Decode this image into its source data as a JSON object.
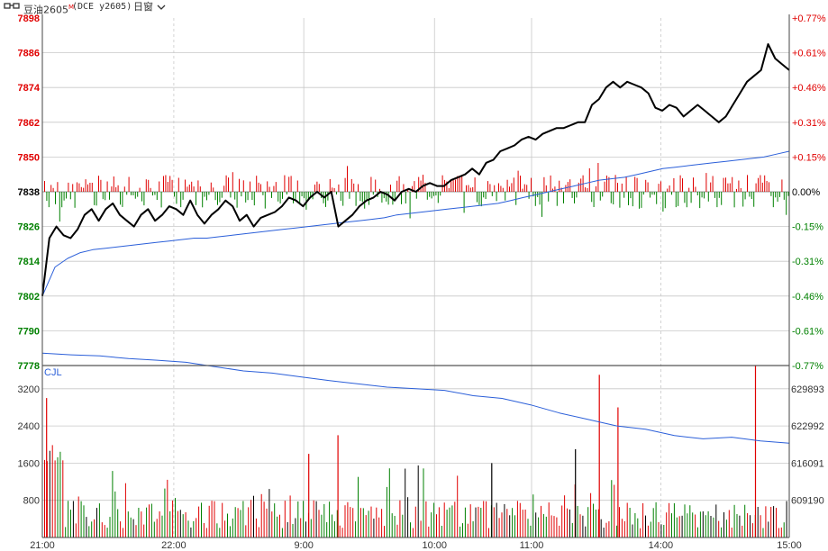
{
  "header": {
    "symbol_name": "豆油2605",
    "symbol_marker": "M",
    "exchange_code": "(DCE y2605)",
    "period": "日窗",
    "period_icon": "chevron-down-icon",
    "toolbar_icon": "glasses-icon"
  },
  "colors": {
    "up": "#e00000",
    "down": "#008000",
    "price_line": "#000000",
    "avg_line": "#2b5fd9",
    "grid": "#c8c8c8",
    "flat": "#000000"
  },
  "chart_data": [
    {
      "type": "line",
      "panel": "price",
      "x_labels": [
        "21:00",
        "22:00",
        "9:00",
        "10:00",
        "11:00",
        "14:00",
        "15:00"
      ],
      "y_ticks": [
        7898,
        7886,
        7874,
        7862,
        7850,
        7838,
        7826,
        7814,
        7802,
        7790,
        7778
      ],
      "y_ticks_right": [
        "+0.77%",
        "+0.61%",
        "+0.46%",
        "+0.31%",
        "+0.15%",
        "0.00%",
        "-0.15%",
        "-0.31%",
        "-0.46%",
        "-0.61%",
        "-0.77%"
      ],
      "ylim": [
        7778,
        7898
      ],
      "reference_price": 7838,
      "series": [
        {
          "role": "price",
          "values": [
            7802,
            7822,
            7826,
            7823,
            7822,
            7825,
            7830,
            7832,
            7828,
            7832,
            7834,
            7830,
            7828,
            7826,
            7830,
            7832,
            7828,
            7830,
            7833,
            7832,
            7830,
            7835,
            7830,
            7827,
            7830,
            7832,
            7835,
            7833,
            7828,
            7830,
            7826,
            7829,
            7830,
            7831,
            7833,
            7836,
            7835,
            7833,
            7836,
            7838,
            7836,
            7838,
            7826,
            7828,
            7830,
            7833,
            7835,
            7836,
            7838,
            7837,
            7835,
            7838,
            7839,
            7838,
            7840,
            7841,
            7840,
            7840,
            7842,
            7843,
            7844,
            7846,
            7844,
            7848,
            7849,
            7852,
            7853,
            7854,
            7856,
            7857,
            7856,
            7858,
            7859,
            7860,
            7860,
            7861,
            7862,
            7862,
            7868,
            7870,
            7874,
            7876,
            7874,
            7876,
            7875,
            7874,
            7872,
            7867,
            7866,
            7868,
            7867,
            7864,
            7866,
            7868,
            7866,
            7864,
            7862,
            7864,
            7868,
            7872,
            7876,
            7878,
            7880,
            7889,
            7884,
            7882,
            7880
          ]
        },
        {
          "role": "average",
          "values": [
            7802,
            7812,
            7815,
            7817,
            7818,
            7818.5,
            7819,
            7819.5,
            7820,
            7820.5,
            7821,
            7821.5,
            7822,
            7822,
            7822.5,
            7823,
            7823.5,
            7824,
            7824.5,
            7825,
            7825.5,
            7826,
            7826.5,
            7827,
            7827.5,
            7828,
            7828.5,
            7829,
            7830,
            7830.5,
            7831,
            7831.5,
            7832,
            7832.5,
            7833,
            7833.5,
            7834,
            7835,
            7836,
            7837,
            7838,
            7839,
            7840,
            7841,
            7842,
            7842.5,
            7843,
            7844,
            7845,
            7846,
            7846.5,
            7847,
            7847.5,
            7848,
            7848.5,
            7849,
            7849.5,
            7850,
            7851,
            7852
          ]
        }
      ]
    },
    {
      "type": "bar",
      "panel": "volume",
      "label": "CJL",
      "y_ticks": [
        3200,
        2400,
        1600,
        800
      ],
      "y_ticks_right": [
        "629893",
        "622992",
        "616091",
        "609190"
      ],
      "ylim": [
        0,
        3700
      ],
      "notable_values": [
        3500,
        3500,
        3700,
        3000,
        1800,
        1400
      ],
      "open_interest_values": [
        636500,
        636200,
        636000,
        635500,
        635200,
        634800,
        634000,
        633200,
        632800,
        632100,
        631400,
        630800,
        630200,
        629900,
        629600,
        628600,
        628100,
        626900,
        625400,
        624200,
        623000,
        622400,
        621200,
        620600,
        620900,
        620200,
        619800
      ]
    }
  ]
}
